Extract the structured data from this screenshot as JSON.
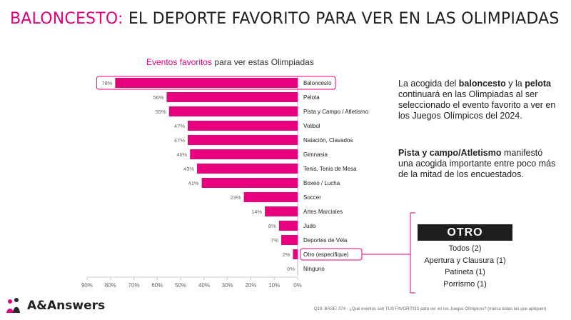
{
  "title": {
    "highlight": "BALONCESTO:",
    "rest": "EL DEPORTE FAVORITO PARA VER EN LAS OLIMPIADAS"
  },
  "chart_subtitle": {
    "highlight": "Eventos favoritos",
    "rest": "para ver estas Olimpiadas"
  },
  "chart_data": {
    "type": "bar",
    "orientation": "horizontal",
    "direction": "right-to-left",
    "categories": [
      "Baloncesto",
      "Pelota",
      "Pista y Campo / Atletismo",
      "Volibol",
      "Natación, Clavados",
      "Gimnasia",
      "Tenis, Tenis de Mesa",
      "Boxeo / Lucha",
      "Soccer",
      "Artes Marciales",
      "Judo",
      "Deportes de Vela",
      "Otro (especifique)",
      "Ninguno"
    ],
    "values": [
      78,
      56,
      55,
      47,
      47,
      46,
      43,
      41,
      23,
      14,
      8,
      7,
      2,
      0
    ],
    "value_labels": [
      "78%",
      "56%",
      "55%",
      "47%",
      "47%",
      "46%",
      "43%",
      "41%",
      "23%",
      "14%",
      "8%",
      "7%",
      "2%",
      "0%"
    ],
    "xlim": [
      0,
      90
    ],
    "ticks": [
      "90%",
      "80%",
      "70%",
      "60%",
      "50%",
      "40%",
      "30%",
      "20%",
      "10%",
      "0%"
    ],
    "tick_values": [
      90,
      80,
      70,
      60,
      50,
      40,
      30,
      20,
      10,
      0
    ],
    "highlighted": [
      "Baloncesto",
      "Otro (especifique)"
    ],
    "bar_color": "#e6007e"
  },
  "paragraphs": {
    "p1": {
      "a": "La acogida del ",
      "b": "baloncesto",
      "c": " y la ",
      "d": "pelota",
      "e": " continuará en las Olimpiadas al ser seleccionado el evento favorito a ver en los Juegos Olímpicos del 2024."
    },
    "p2": {
      "b": "Pista y campo/Atletismo",
      "e": " manifestó una acogida importante entre poco más de la mitad de los encuestados."
    }
  },
  "otro": {
    "header": "OTRO",
    "items": [
      "Todos (2)",
      "Apertura y Clausura (1)",
      "Patineta (1)",
      "Porrismo (1)"
    ]
  },
  "footnote": "Q19. BASE: 374 - ¿Qué eventos son TUS FAVORITOS para ver en los Juegos Olímpicos? (marca todas las que apliquen)",
  "logo": {
    "text": "A&Answers",
    "icon": "people-logo-icon"
  },
  "colors": {
    "accent": "#e6007e",
    "dark": "#1e1e1e",
    "axis": "#cccccc"
  }
}
